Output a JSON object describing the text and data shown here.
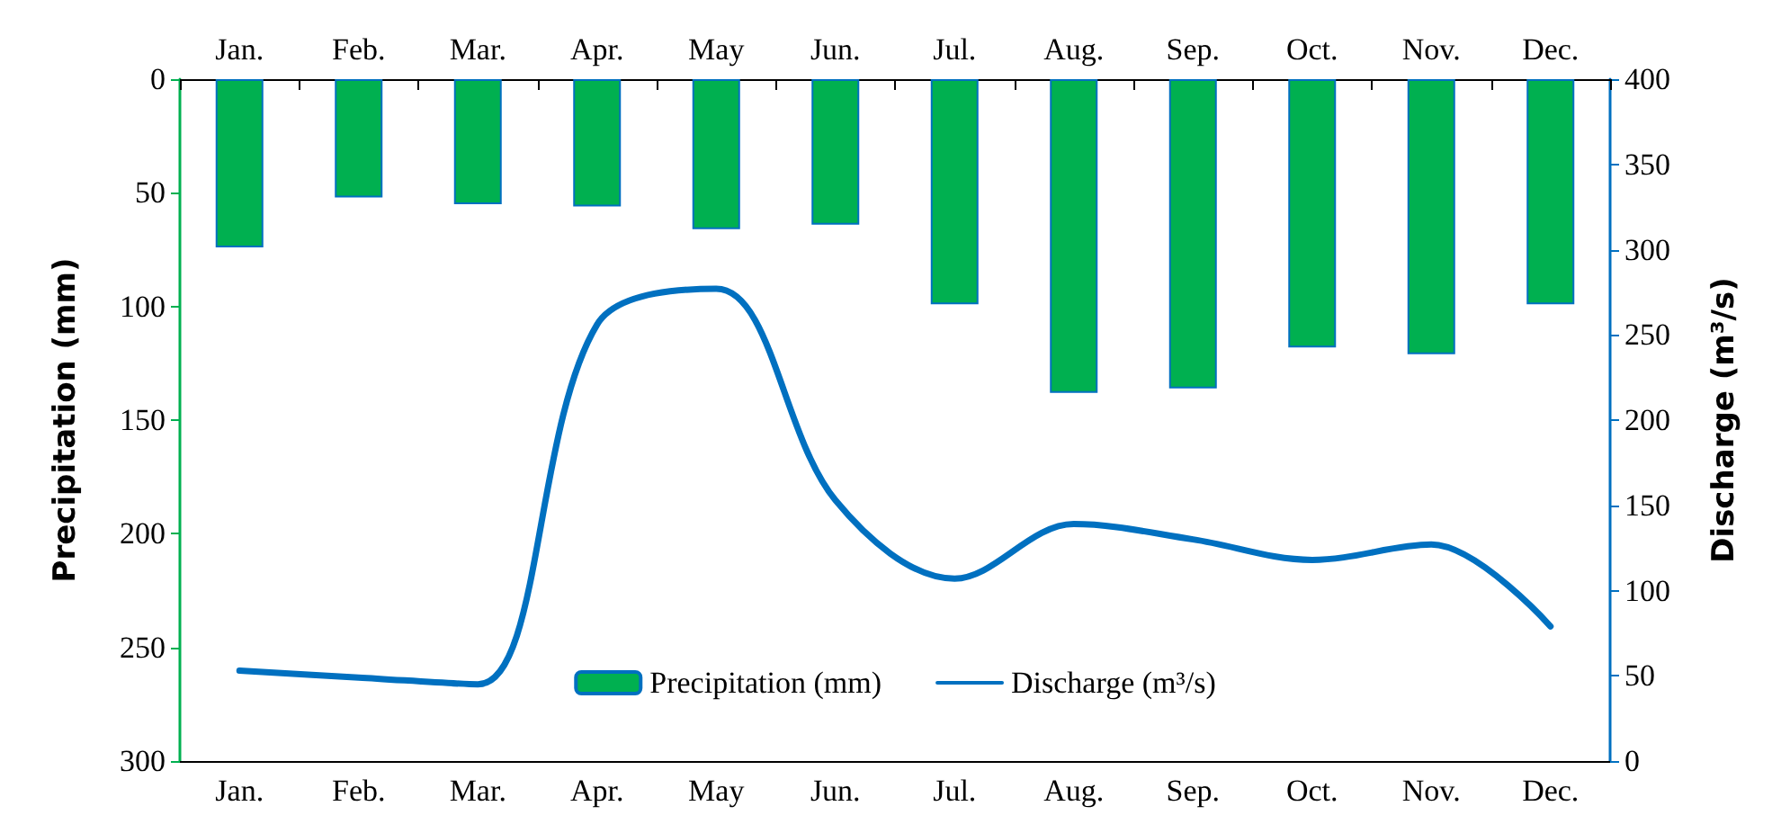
{
  "chart_data": {
    "type": "bar",
    "categories": [
      "Jan.",
      "Feb.",
      "Mar.",
      "Apr.",
      "May",
      "Jun.",
      "Jul.",
      "Aug.",
      "Sep.",
      "Oct.",
      "Nov.",
      "Dec."
    ],
    "ylabel": "Precipitation (mm)",
    "y2label": "Discharge (m³/s)",
    "ylim": [
      300,
      0
    ],
    "yticks": [
      0,
      50,
      100,
      150,
      200,
      250,
      300
    ],
    "y2lim": [
      0,
      400
    ],
    "y2ticks": [
      0,
      50,
      100,
      150,
      200,
      250,
      300,
      350,
      400
    ],
    "series": [
      {
        "name": "Precipitation (mm)",
        "color": "#00b050",
        "values": [
          74,
          52,
          55,
          56,
          66,
          64,
          99,
          138,
          136,
          118,
          121,
          99
        ]
      },
      {
        "name": "Discharge (m³/s)",
        "type": "line",
        "axis": "y2",
        "color": "#0070c0",
        "values": [
          53,
          49,
          45,
          256,
          277,
          153,
          107,
          139,
          130,
          118,
          127,
          79
        ]
      }
    ],
    "legend": "bottom",
    "grid": false,
    "marker": "none",
    "line_style": "solid"
  }
}
